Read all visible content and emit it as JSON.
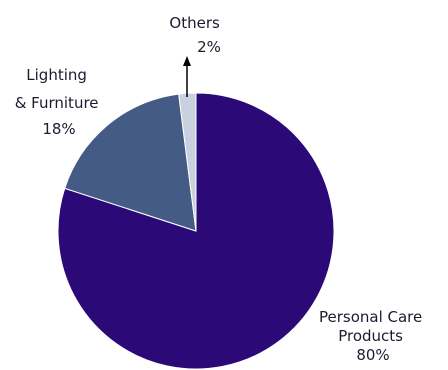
{
  "chart_data": {
    "type": "pie",
    "slices": [
      {
        "label": "Personal Care Products",
        "label_lines": [
          "Personal Care",
          "Products"
        ],
        "value": 80,
        "value_label": "80%",
        "color": "#2b0a78"
      },
      {
        "label": "Lighting & Furniture",
        "label_lines": [
          "Lighting",
          "& Furniture"
        ],
        "value": 18,
        "value_label": "18%",
        "color": "#445b86"
      },
      {
        "label": "Others",
        "label_lines": [
          "Others"
        ],
        "value": 2,
        "value_label": "2%",
        "color": "#c9d0e0"
      }
    ],
    "start": "12 o'clock",
    "direction": "clockwise",
    "legend": "none",
    "title": ""
  }
}
